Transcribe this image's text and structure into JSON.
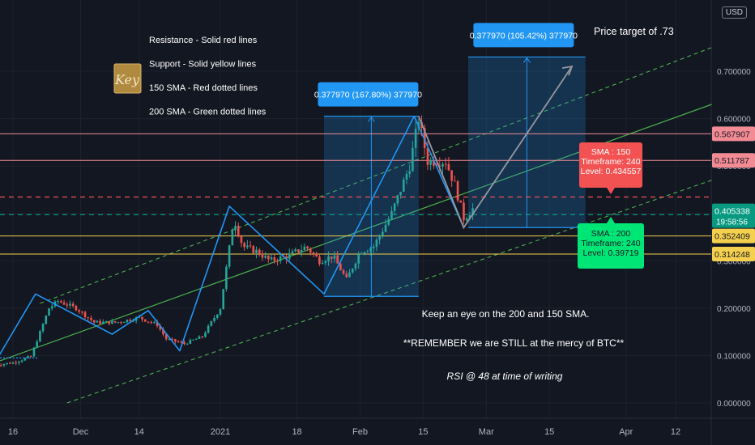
{
  "currency": "USD",
  "colors": {
    "background": "#131722",
    "grid": "#1e222d",
    "axis_text": "#b2b5be",
    "bull": "#26a69a",
    "bear": "#ef5350",
    "zigzag": "#2196f3",
    "channel": "#4caf50",
    "resistance": "#f28b94",
    "support": "#f5d04e",
    "sma150": "#f25252",
    "sma200": "#089981",
    "measure_box": "rgba(33,150,243,0.22)",
    "measure_label": "#2196f3",
    "projection": "#9598a1"
  },
  "chart_data": {
    "type": "candlestick",
    "ylim": [
      -0.02,
      0.77
    ],
    "price_ticks": [
      0.0,
      0.1,
      0.2,
      0.3,
      0.4,
      0.5,
      0.6,
      0.7
    ],
    "price_tick_labels": [
      "0.000000",
      "0.100000",
      "0.200000",
      "0.300000",
      "0.400000",
      "0.500000",
      "0.600000",
      "0.700000"
    ],
    "time_ticks": [
      {
        "date": "2020-11-16",
        "label": "16"
      },
      {
        "date": "2020-12-01",
        "label": "Dec"
      },
      {
        "date": "2020-12-14",
        "label": "14"
      },
      {
        "date": "2021-01-01",
        "label": "2021"
      },
      {
        "date": "2021-01-18",
        "label": "18"
      },
      {
        "date": "2021-02-01",
        "label": "Feb"
      },
      {
        "date": "2021-02-15",
        "label": "15"
      },
      {
        "date": "2021-03-01",
        "label": "Mar"
      },
      {
        "date": "2021-03-15",
        "label": "15"
      },
      {
        "date": "2021-04-01",
        "label": "Apr"
      },
      {
        "date": "2021-04-12",
        "label": "12"
      }
    ],
    "close_path": [
      [
        "2020-11-12",
        0.08
      ],
      [
        "2020-11-16",
        0.085
      ],
      [
        "2020-11-20",
        0.098
      ],
      [
        "2020-11-24",
        0.2
      ],
      [
        "2020-11-26",
        0.215
      ],
      [
        "2020-11-30",
        0.2
      ],
      [
        "2020-12-04",
        0.17
      ],
      [
        "2020-12-09",
        0.17
      ],
      [
        "2020-12-14",
        0.18
      ],
      [
        "2020-12-18",
        0.165
      ],
      [
        "2020-12-20",
        0.135
      ],
      [
        "2020-12-24",
        0.125
      ],
      [
        "2020-12-28",
        0.14
      ],
      [
        "2020-12-30",
        0.17
      ],
      [
        "2021-01-01",
        0.2
      ],
      [
        "2021-01-04",
        0.39
      ],
      [
        "2021-01-06",
        0.33
      ],
      [
        "2021-01-09",
        0.32
      ],
      [
        "2021-01-12",
        0.3
      ],
      [
        "2021-01-16",
        0.31
      ],
      [
        "2021-01-20",
        0.33
      ],
      [
        "2021-01-23",
        0.3
      ],
      [
        "2021-01-26",
        0.31
      ],
      [
        "2021-01-29",
        0.26
      ],
      [
        "2021-02-01",
        0.32
      ],
      [
        "2021-02-04",
        0.33
      ],
      [
        "2021-02-08",
        0.4
      ],
      [
        "2021-02-12",
        0.5
      ],
      [
        "2021-02-14",
        0.6
      ],
      [
        "2021-02-16",
        0.51
      ],
      [
        "2021-02-20",
        0.51
      ],
      [
        "2021-02-22",
        0.46
      ],
      [
        "2021-02-24",
        0.39
      ],
      [
        "2021-02-26",
        0.41
      ]
    ],
    "zigzag": [
      [
        "2020-11-12",
        0.085
      ],
      [
        "2020-11-21",
        0.23
      ],
      [
        "2020-12-08",
        0.145
      ],
      [
        "2020-12-16",
        0.195
      ],
      [
        "2020-12-23",
        0.11
      ],
      [
        "2021-01-03",
        0.415
      ],
      [
        "2021-01-24",
        0.23
      ],
      [
        "2021-02-13",
        0.605
      ],
      [
        "2021-02-24",
        0.37
      ]
    ],
    "channel": {
      "mid": [
        [
          "2020-11-12",
          0.085
        ],
        [
          "2021-04-20",
          0.63
        ]
      ],
      "upper": [
        [
          "2020-11-22",
          0.21
        ],
        [
          "2021-04-20",
          0.75
        ]
      ],
      "lower": [
        [
          "2020-11-28",
          0.0
        ],
        [
          "2021-04-20",
          0.47
        ]
      ]
    },
    "horizontal_lines": [
      {
        "name": "resistance-1",
        "value": 0.567907,
        "label": "0.567907",
        "style": "solid",
        "role": "resistance"
      },
      {
        "name": "resistance-2",
        "value": 0.511787,
        "label": "0.511787",
        "style": "solid",
        "role": "resistance"
      },
      {
        "name": "sma150-line",
        "value": 0.434557,
        "label": "",
        "style": "dashed",
        "role": "sma150"
      },
      {
        "name": "sma200-line",
        "value": 0.39719,
        "label": "",
        "style": "dashed",
        "role": "sma200"
      },
      {
        "name": "support-1",
        "value": 0.352409,
        "label": "0.352409",
        "style": "solid",
        "role": "support"
      },
      {
        "name": "support-2",
        "value": 0.314248,
        "label": "0.314248",
        "style": "solid",
        "role": "support"
      }
    ],
    "last_price": {
      "value": 0.405338,
      "label": "0.405338",
      "countdown": "19:58:56"
    },
    "measure_boxes": [
      {
        "from": "2021-01-24",
        "to": "2021-02-14",
        "low": 0.225,
        "high": 0.605,
        "label": "0.377970 (167.80%) 377970"
      },
      {
        "from": "2021-02-25",
        "to": "2021-03-23",
        "low": 0.37,
        "high": 0.73,
        "label": "0.377970 (105.42%) 377970"
      }
    ],
    "projection": {
      "from": [
        "2021-02-14",
        0.605
      ],
      "via": [
        "2021-02-24",
        0.37
      ],
      "to": [
        "2021-03-20",
        0.71
      ]
    }
  },
  "legend": {
    "key_label": "Key",
    "items": [
      "Resistance - Solid red lines",
      "Support - Solid yellow lines",
      "150 SMA - Red dotted lines",
      "200 SMA - Green dotted lines"
    ]
  },
  "annotations": {
    "price_target": "Price target of .73",
    "sma150_callout": [
      "SMA : 150",
      "Timeframe: 240",
      "Level: 0.434557"
    ],
    "sma200_callout": [
      "SMA : 200",
      "Timeframe: 240",
      "Level: 0.39719"
    ],
    "note_1": "Keep an eye on the 200 and 150 SMA.",
    "note_2": "**REMEMBER we are STILL at the mercy of BTC**",
    "note_3": "RSI @ 48 at time of writing"
  }
}
